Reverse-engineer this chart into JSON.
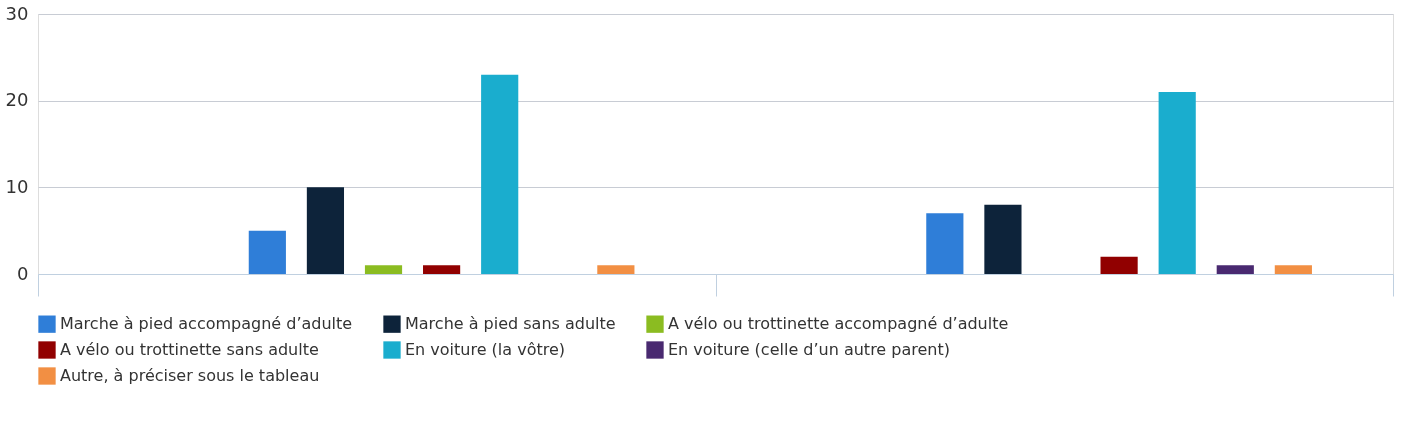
{
  "chart_data": {
    "type": "bar",
    "categories": [
      null,
      null
    ],
    "series": [
      {
        "name": "Marche à pied accompagné d’adulte",
        "color": "#2f7ed8",
        "values": [
          5,
          7
        ]
      },
      {
        "name": "Marche à pied sans adulte",
        "color": "#0d233a",
        "values": [
          10,
          8
        ]
      },
      {
        "name": "A vélo ou trottinette accompagné d’adulte",
        "color": "#8bbc21",
        "values": [
          1,
          0
        ]
      },
      {
        "name": "A vélo ou trottinette sans adulte",
        "color": "#910000",
        "values": [
          1,
          2
        ]
      },
      {
        "name": "En voiture (la vôtre)",
        "color": "#1aadce",
        "values": [
          23,
          21
        ]
      },
      {
        "name": "En voiture (celle d’un autre parent)",
        "color": "#492970",
        "values": [
          0,
          1
        ]
      },
      {
        "name": "Autre, à préciser sous le tableau",
        "color": "#f28f43",
        "values": [
          1,
          1
        ]
      }
    ],
    "ylim": [
      0,
      30
    ],
    "yticks": [
      0,
      10,
      20,
      30
    ],
    "grid": "y",
    "legend": "bottom",
    "tick_labels": "y"
  }
}
